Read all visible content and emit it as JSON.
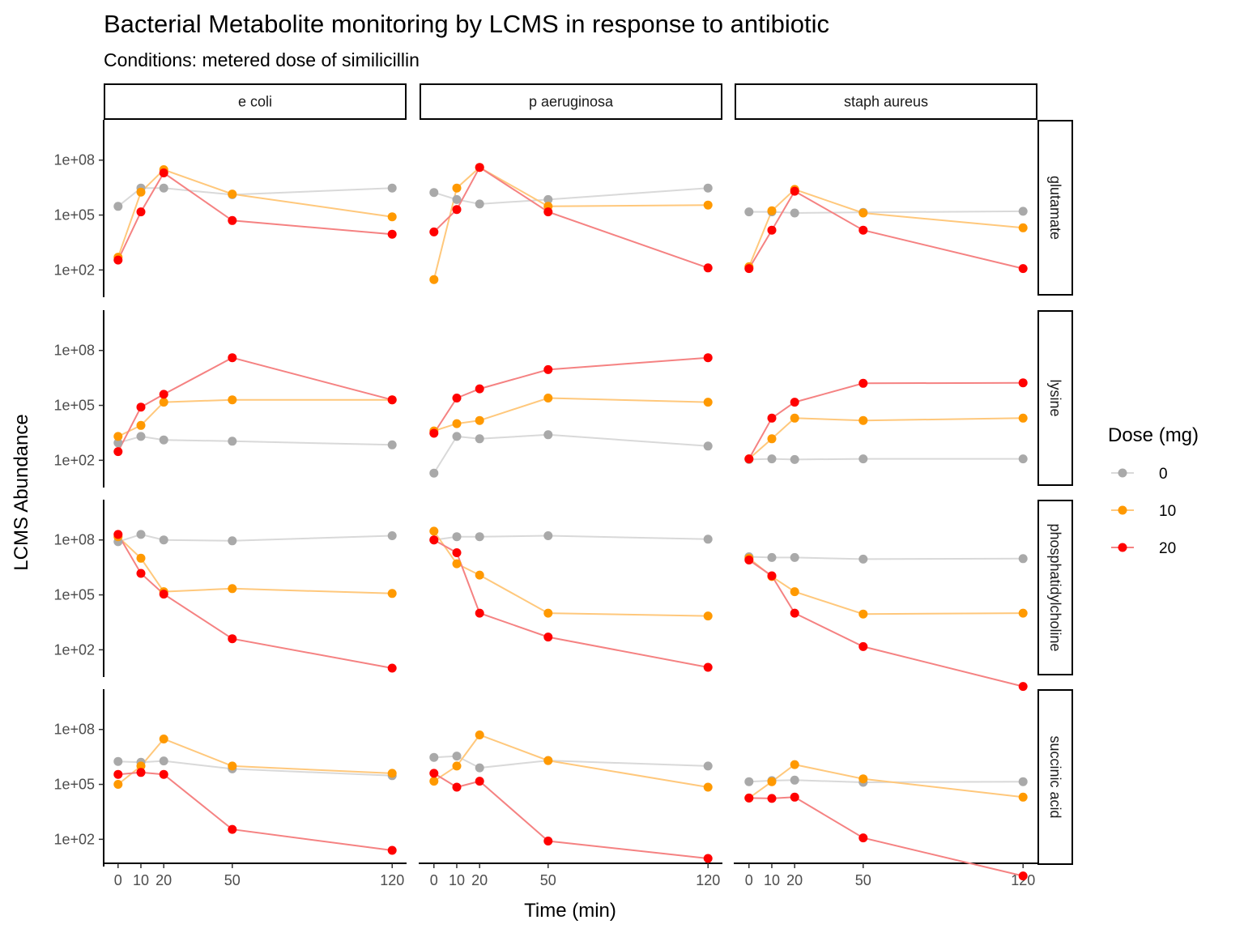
{
  "chart_data": {
    "type": "line",
    "title": "Bacterial Metabolite monitoring by LCMS in response to antibiotic",
    "subtitle": "Conditions: metered dose of similicillin",
    "xlabel": "Time (min)",
    "ylabel": "LCMS Abundance",
    "x": [
      0,
      10,
      20,
      50,
      120
    ],
    "x_ticks": [
      0,
      10,
      20,
      50,
      120
    ],
    "y_scale": "log10",
    "y_ticks": [
      100,
      100000,
      100000000
    ],
    "y_tick_labels": [
      "1e+02",
      "1e+05",
      "1e+08"
    ],
    "grid": false,
    "columns": [
      "e coli",
      "p aeruginosa",
      "staph aureus"
    ],
    "rows": [
      "glutamate",
      "lysine",
      "phosphatidylcholine",
      "succinic acid"
    ],
    "legend": {
      "title": "Dose (mg)",
      "placement": "right",
      "entries": [
        {
          "label": "0",
          "point_color": "#a9a9a9",
          "line_color": "#d9d9d9"
        },
        {
          "label": "10",
          "point_color": "#ff9900",
          "line_color": "#ffc87c"
        },
        {
          "label": "20",
          "point_color": "#ff0000",
          "line_color": "#f58282"
        }
      ]
    },
    "panels": [
      {
        "row": "glutamate",
        "col": "e coli",
        "series": [
          {
            "name": "0",
            "values": [
              300000,
              3000000,
              3000000,
              1300000,
              3000000
            ]
          },
          {
            "name": "10",
            "values": [
              500,
              1800000,
              30000000,
              1400000,
              80000
            ]
          },
          {
            "name": "20",
            "values": [
              350,
              150000,
              20000000,
              50000,
              9000
            ]
          }
        ]
      },
      {
        "row": "glutamate",
        "col": "p aeruginosa",
        "series": [
          {
            "name": "0",
            "values": [
              1700000,
              700000,
              400000,
              700000,
              3000000
            ]
          },
          {
            "name": "10",
            "values": [
              30,
              3000000,
              40000000,
              300000,
              350000
            ]
          },
          {
            "name": "20",
            "values": [
              12000,
              200000,
              40000000,
              150000,
              130
            ]
          }
        ]
      },
      {
        "row": "glutamate",
        "col": "staph aureus",
        "series": [
          {
            "name": "0",
            "values": [
              150000,
              150000,
              130000,
              140000,
              160000
            ]
          },
          {
            "name": "10",
            "values": [
              150,
              170000,
              2500000,
              130000,
              20000
            ]
          },
          {
            "name": "20",
            "values": [
              120,
              15000,
              2000000,
              15000,
              120
            ]
          }
        ]
      },
      {
        "row": "lysine",
        "col": "e coli",
        "series": [
          {
            "name": "0",
            "values": [
              900,
              2000,
              1300,
              1100,
              700
            ]
          },
          {
            "name": "10",
            "values": [
              2000,
              8000,
              150000,
              200000,
              200000
            ]
          },
          {
            "name": "20",
            "values": [
              300,
              80000,
              400000,
              40000000,
              200000
            ]
          }
        ]
      },
      {
        "row": "lysine",
        "col": "p aeruginosa",
        "series": [
          {
            "name": "0",
            "values": [
              20,
              2000,
              1500,
              2500,
              600
            ]
          },
          {
            "name": "10",
            "values": [
              4000,
              10000,
              15000,
              250000,
              150000
            ]
          },
          {
            "name": "20",
            "values": [
              3000,
              250000,
              800000,
              9000000,
              40000000
            ]
          }
        ]
      },
      {
        "row": "lysine",
        "col": "staph aureus",
        "series": [
          {
            "name": "0",
            "values": [
              110,
              120,
              110,
              120,
              120
            ]
          },
          {
            "name": "10",
            "values": [
              120,
              1500,
              20000,
              15000,
              20000
            ]
          },
          {
            "name": "20",
            "values": [
              120,
              20000,
              150000,
              1600000,
              1700000
            ]
          }
        ]
      },
      {
        "row": "phosphatidylcholine",
        "col": "e coli",
        "series": [
          {
            "name": "0",
            "values": [
              80000000,
              200000000,
              100000000,
              90000000,
              170000000
            ]
          },
          {
            "name": "10",
            "values": [
              150000000,
              10000000,
              150000,
              220000,
              120000
            ]
          },
          {
            "name": "20",
            "values": [
              200000000,
              1500000,
              110000,
              400,
              10
            ]
          }
        ]
      },
      {
        "row": "phosphatidylcholine",
        "col": "p aeruginosa",
        "series": [
          {
            "name": "0",
            "values": [
              100000000,
              150000000,
              150000000,
              170000000,
              110000000
            ]
          },
          {
            "name": "10",
            "values": [
              300000000,
              5000000,
              1200000,
              10000,
              7000
            ]
          },
          {
            "name": "20",
            "values": [
              100000000,
              20000000,
              10000,
              500,
              11
            ]
          }
        ]
      },
      {
        "row": "phosphatidylcholine",
        "col": "staph aureus",
        "series": [
          {
            "name": "0",
            "values": [
              12000000,
              11000000,
              11000000,
              9000000,
              9500000
            ]
          },
          {
            "name": "10",
            "values": [
              10000000,
              1000000,
              150000,
              9000,
              10000
            ]
          },
          {
            "name": "20",
            "values": [
              8000000,
              1100000,
              10000,
              150,
              1
            ]
          }
        ]
      },
      {
        "row": "succinic acid",
        "col": "e coli",
        "series": [
          {
            "name": "0",
            "values": [
              1800000,
              1600000,
              1900000,
              700000,
              300000
            ]
          },
          {
            "name": "10",
            "values": [
              100000,
              1000000,
              30000000,
              1000000,
              400000
            ]
          },
          {
            "name": "20",
            "values": [
              350000,
              450000,
              350000,
              350,
              25
            ]
          }
        ]
      },
      {
        "row": "succinic acid",
        "col": "p aeruginosa",
        "series": [
          {
            "name": "0",
            "values": [
              3000000,
              3500000,
              800000,
              2000000,
              1000000
            ]
          },
          {
            "name": "10",
            "values": [
              150000,
              1000000,
              50000000,
              2000000,
              70000
            ]
          },
          {
            "name": "20",
            "values": [
              400000,
              70000,
              150000,
              80,
              9
            ]
          }
        ]
      },
      {
        "row": "succinic acid",
        "col": "staph aureus",
        "series": [
          {
            "name": "0",
            "values": [
              140000,
              160000,
              170000,
              130000,
              140000
            ]
          },
          {
            "name": "10",
            "values": [
              18000,
              140000,
              1200000,
              200000,
              20000
            ]
          },
          {
            "name": "20",
            "values": [
              18000,
              17000,
              20000,
              120,
              1
            ]
          }
        ]
      }
    ]
  }
}
